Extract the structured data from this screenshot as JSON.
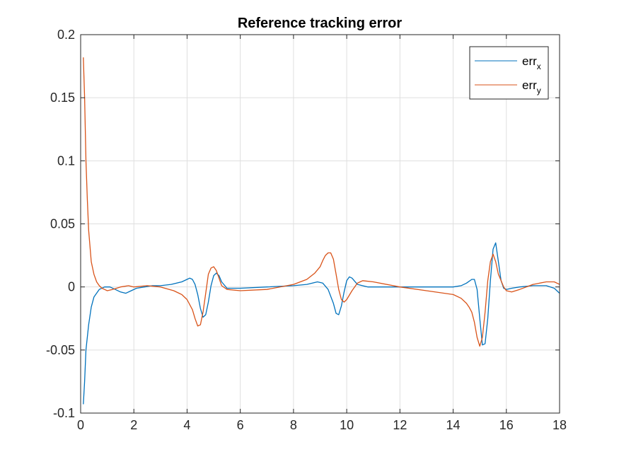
{
  "chart_data": {
    "type": "line",
    "title": "Reference tracking error",
    "xlabel": "",
    "ylabel": "",
    "xlim": [
      0,
      18
    ],
    "ylim": [
      -0.1,
      0.2
    ],
    "xticks": [
      0,
      2,
      4,
      6,
      8,
      10,
      12,
      14,
      16,
      18
    ],
    "yticks": [
      -0.1,
      -0.05,
      0,
      0.05,
      0.1,
      0.15,
      0.2
    ],
    "xtick_labels": [
      "0",
      "2",
      "4",
      "6",
      "8",
      "10",
      "12",
      "14",
      "16",
      "18"
    ],
    "ytick_labels": [
      "-0.1",
      "-0.05",
      "0",
      "0.05",
      "0.1",
      "0.15",
      "0.2"
    ],
    "grid": true,
    "legend_position": "top-right",
    "series": [
      {
        "name": "err",
        "subscript": "x",
        "color": "#0072BD",
        "x": [
          0.1,
          0.15,
          0.2,
          0.3,
          0.4,
          0.5,
          0.7,
          0.9,
          1.1,
          1.3,
          1.5,
          1.7,
          1.9,
          2.1,
          2.4,
          2.7,
          3.0,
          3.4,
          3.8,
          4.0,
          4.1,
          4.2,
          4.3,
          4.4,
          4.5,
          4.6,
          4.7,
          4.8,
          4.9,
          5.0,
          5.1,
          5.2,
          5.3,
          5.5,
          6.0,
          7.0,
          8.0,
          8.5,
          8.9,
          9.1,
          9.3,
          9.5,
          9.6,
          9.7,
          9.8,
          9.9,
          10.0,
          10.1,
          10.2,
          10.4,
          10.8,
          12.0,
          13.0,
          14.0,
          14.3,
          14.5,
          14.7,
          14.8,
          14.9,
          15.0,
          15.1,
          15.2,
          15.3,
          15.4,
          15.5,
          15.6,
          15.7,
          15.8,
          15.9,
          16.0,
          16.2,
          16.5,
          17.0,
          17.5,
          17.8,
          18.0
        ],
        "y": [
          -0.093,
          -0.075,
          -0.05,
          -0.03,
          -0.016,
          -0.008,
          -0.002,
          0.0,
          0.0,
          -0.002,
          -0.004,
          -0.005,
          -0.003,
          -0.001,
          0.0,
          0.001,
          0.001,
          0.002,
          0.004,
          0.006,
          0.007,
          0.006,
          0.002,
          -0.006,
          -0.017,
          -0.024,
          -0.022,
          -0.012,
          0.001,
          0.009,
          0.011,
          0.009,
          0.004,
          -0.001,
          -0.001,
          0.0,
          0.001,
          0.002,
          0.004,
          0.003,
          -0.002,
          -0.013,
          -0.021,
          -0.022,
          -0.015,
          -0.004,
          0.005,
          0.008,
          0.007,
          0.002,
          0.0,
          0.0,
          0.0,
          0.0,
          0.001,
          0.003,
          0.006,
          0.006,
          -0.002,
          -0.025,
          -0.046,
          -0.045,
          -0.025,
          0.005,
          0.03,
          0.035,
          0.02,
          0.005,
          -0.001,
          -0.002,
          -0.001,
          0.0,
          0.001,
          0.001,
          -0.001,
          -0.005
        ]
      },
      {
        "name": "err",
        "subscript": "y",
        "color": "#D95319",
        "x": [
          0.1,
          0.15,
          0.2,
          0.25,
          0.3,
          0.4,
          0.5,
          0.6,
          0.7,
          0.8,
          0.9,
          1.0,
          1.2,
          1.5,
          1.8,
          2.0,
          2.5,
          3.0,
          3.5,
          3.8,
          4.0,
          4.2,
          4.3,
          4.4,
          4.5,
          4.6,
          4.7,
          4.8,
          4.9,
          5.0,
          5.1,
          5.2,
          5.3,
          5.5,
          6.0,
          7.0,
          8.0,
          8.5,
          8.8,
          9.0,
          9.1,
          9.2,
          9.3,
          9.4,
          9.5,
          9.6,
          9.7,
          9.8,
          9.9,
          10.0,
          10.2,
          10.4,
          10.6,
          11.0,
          12.0,
          13.0,
          14.0,
          14.3,
          14.5,
          14.6,
          14.7,
          14.8,
          14.9,
          15.0,
          15.1,
          15.2,
          15.3,
          15.4,
          15.5,
          15.6,
          15.7,
          15.8,
          15.9,
          16.0,
          16.2,
          16.5,
          17.0,
          17.5,
          17.8,
          18.0
        ],
        "y": [
          0.182,
          0.15,
          0.1,
          0.07,
          0.045,
          0.02,
          0.01,
          0.004,
          0.001,
          -0.001,
          -0.002,
          -0.003,
          -0.002,
          0.0,
          0.001,
          0.0,
          0.001,
          0.0,
          -0.003,
          -0.006,
          -0.01,
          -0.018,
          -0.025,
          -0.031,
          -0.03,
          -0.02,
          -0.005,
          0.01,
          0.015,
          0.016,
          0.013,
          0.007,
          0.001,
          -0.002,
          -0.003,
          -0.002,
          0.002,
          0.006,
          0.011,
          0.016,
          0.021,
          0.025,
          0.027,
          0.027,
          0.022,
          0.01,
          -0.002,
          -0.01,
          -0.012,
          -0.01,
          -0.003,
          0.003,
          0.005,
          0.004,
          0.0,
          -0.003,
          -0.006,
          -0.009,
          -0.013,
          -0.016,
          -0.02,
          -0.028,
          -0.04,
          -0.047,
          -0.04,
          -0.02,
          0.005,
          0.02,
          0.026,
          0.02,
          0.01,
          0.005,
          0.0,
          -0.003,
          -0.004,
          -0.002,
          0.002,
          0.004,
          0.004,
          0.002
        ]
      }
    ]
  }
}
